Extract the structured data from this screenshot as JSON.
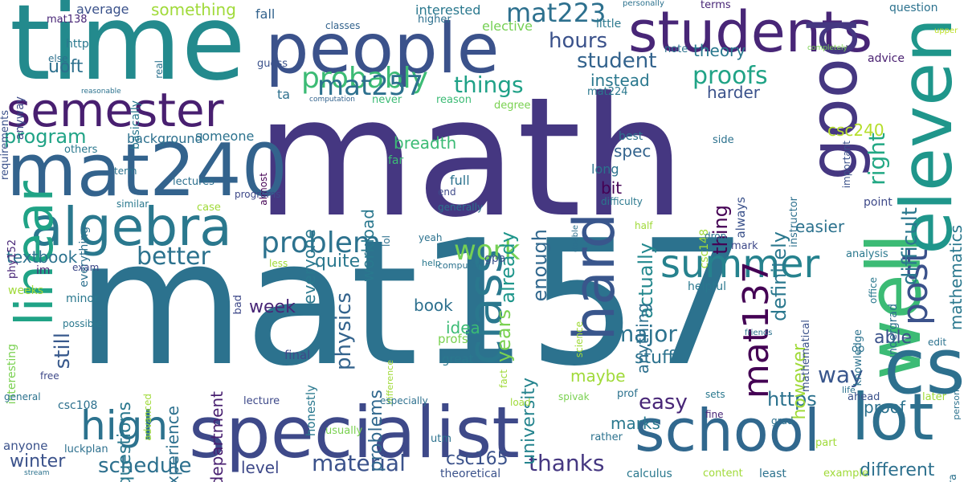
{
  "words": [
    {
      "text": "math",
      "color": "#453781"
    },
    {
      "text": "mat157",
      "color": "#2c728e"
    },
    {
      "text": "time",
      "color": "#238a8d"
    },
    {
      "text": "people",
      "color": "#3b528b"
    },
    {
      "text": "students",
      "color": "#482677"
    },
    {
      "text": "mat240",
      "color": "#33638d"
    },
    {
      "text": "semester",
      "color": "#481f70"
    },
    {
      "text": "specialist",
      "color": "#3e4989"
    },
    {
      "text": "algebra",
      "color": "#2a788e"
    },
    {
      "text": "linear",
      "color": "#20a386"
    },
    {
      "text": "well",
      "color": "#3cbb75"
    },
    {
      "text": "good",
      "color": "#453781"
    },
    {
      "text": "eleven",
      "color": "#1f968b"
    },
    {
      "text": "cs",
      "color": "#2d708e"
    },
    {
      "text": "school",
      "color": "#31688e"
    },
    {
      "text": "lot",
      "color": "#2d708e"
    },
    {
      "text": "hard",
      "color": "#39568c"
    },
    {
      "text": "class",
      "color": "#2a788e"
    },
    {
      "text": "summer",
      "color": "#26828e"
    },
    {
      "text": "high",
      "color": "#2c728e"
    },
    {
      "text": "probably",
      "color": "#3cbb75"
    },
    {
      "text": "mat223",
      "color": "#2d708e"
    },
    {
      "text": "mat137",
      "color": "#440154"
    },
    {
      "text": "post",
      "color": "#3b528b"
    },
    {
      "text": "problem",
      "color": "#2c728e"
    },
    {
      "text": "work",
      "color": "#75d054"
    },
    {
      "text": "mat257",
      "color": "#2d708e"
    },
    {
      "text": "material",
      "color": "#3b528b"
    },
    {
      "text": "thanks",
      "color": "#453781"
    },
    {
      "text": "schedule",
      "color": "#2d708e"
    },
    {
      "text": "still",
      "color": "#38598c"
    },
    {
      "text": "program",
      "color": "#20a386"
    },
    {
      "text": "better",
      "color": "#2c728e"
    },
    {
      "text": "proofs",
      "color": "#20a386"
    },
    {
      "text": "hours",
      "color": "#3b528b"
    },
    {
      "text": "student",
      "color": "#33638d"
    },
    {
      "text": "things",
      "color": "#1fa187"
    },
    {
      "text": "uoft",
      "color": "#2d708e"
    },
    {
      "text": "physics",
      "color": "#33638d"
    },
    {
      "text": "major",
      "color": "#2c728e"
    },
    {
      "text": "easy",
      "color": "#482677"
    },
    {
      "text": "way",
      "color": "#39568c"
    },
    {
      "text": "https",
      "color": "#2c728e"
    },
    {
      "text": "right",
      "color": "#22a884"
    },
    {
      "text": "difficult",
      "color": "#2a788e"
    },
    {
      "text": "definitely",
      "color": "#2a788e"
    },
    {
      "text": "enough",
      "color": "#31688e"
    },
    {
      "text": "thing",
      "color": "#440154"
    },
    {
      "text": "already",
      "color": "#1f968b"
    },
    {
      "text": "actually",
      "color": "#23888e"
    },
    {
      "text": "years",
      "color": "#7ad151"
    },
    {
      "text": "university",
      "color": "#25848e"
    },
    {
      "text": "problems",
      "color": "#31688e"
    },
    {
      "text": "questions",
      "color": "#2a788e"
    },
    {
      "text": "experience",
      "color": "#2d708e"
    },
    {
      "text": "department",
      "color": "#481f70"
    },
    {
      "text": "csc165",
      "color": "#3b528b"
    },
    {
      "text": "different",
      "color": "#2d708e"
    },
    {
      "text": "winter",
      "color": "#3b528b"
    },
    {
      "text": "level",
      "color": "#3e4989"
    },
    {
      "text": "textbook",
      "color": "#2c728e"
    },
    {
      "text": "quite",
      "color": "#2a788e"
    },
    {
      "text": "week",
      "color": "#482677"
    },
    {
      "text": "book",
      "color": "#2d708e"
    },
    {
      "text": "idea",
      "color": "#3cbb75"
    },
    {
      "text": "maybe",
      "color": "#a0da39"
    },
    {
      "text": "stuff",
      "color": "#2c728e"
    },
    {
      "text": "able",
      "color": "#3b528b"
    },
    {
      "text": "proof",
      "color": "#2c728e"
    },
    {
      "text": "marks",
      "color": "#2a788e"
    },
    {
      "text": "however",
      "color": "#a0da39"
    },
    {
      "text": "anything",
      "color": "#2d708e"
    },
    {
      "text": "bit",
      "color": "#440154"
    },
    {
      "text": "spec",
      "color": "#33638d"
    },
    {
      "text": "long",
      "color": "#2c728e"
    },
    {
      "text": "instead",
      "color": "#2a788e"
    },
    {
      "text": "theory",
      "color": "#2a788e"
    },
    {
      "text": "harder",
      "color": "#3b528b"
    },
    {
      "text": "easier",
      "color": "#2c728e"
    },
    {
      "text": "mathematics",
      "color": "#2a788e"
    },
    {
      "text": "csc240",
      "color": "#b5de2b"
    },
    {
      "text": "breadth",
      "color": "#3cbb75"
    },
    {
      "text": "everyone",
      "color": "#2a788e"
    },
    {
      "text": "workload",
      "color": "#2a788e"
    },
    {
      "text": "background",
      "color": "#2d708e"
    },
    {
      "text": "someone",
      "color": "#2c728e"
    },
    {
      "text": "something",
      "color": "#a0da39"
    },
    {
      "text": "average",
      "color": "#3b528b"
    },
    {
      "text": "mat138",
      "color": "#482677"
    },
    {
      "text": "fall",
      "color": "#33638d"
    },
    {
      "text": "interested",
      "color": "#2a788e"
    },
    {
      "text": "elective",
      "color": "#75d054"
    },
    {
      "text": "little",
      "color": "#2a788e"
    },
    {
      "text": "personally",
      "color": "#2c728e"
    },
    {
      "text": "terms",
      "color": "#482677"
    },
    {
      "text": "question",
      "color": "#2c728e"
    },
    {
      "text": "upper",
      "color": "#bddf26"
    },
    {
      "text": "higher",
      "color": "#2d708e"
    },
    {
      "text": "classes",
      "color": "#33638d"
    },
    {
      "text": "completely",
      "color": "#7ad151"
    },
    {
      "text": "advice",
      "color": "#481f70"
    },
    {
      "text": "note",
      "color": "#2c728e"
    },
    {
      "text": "requirements",
      "color": "#3b528b"
    },
    {
      "text": "anyway",
      "color": "#3e4989"
    },
    {
      "text": "http",
      "color": "#2a788e"
    },
    {
      "text": "else",
      "color": "#2d708e"
    },
    {
      "text": "basically",
      "color": "#2a788e"
    },
    {
      "text": "real",
      "color": "#2c728e"
    },
    {
      "text": "guess",
      "color": "#3b528b"
    },
    {
      "text": "reasonable",
      "color": "#2c728e"
    },
    {
      "text": "ta",
      "color": "#2d708e"
    },
    {
      "text": "computation",
      "color": "#33638d"
    },
    {
      "text": "never",
      "color": "#3cbb75"
    },
    {
      "text": "reason",
      "color": "#3cbb75"
    },
    {
      "text": "degree",
      "color": "#7ad151"
    },
    {
      "text": "mat224",
      "color": "#2a788e"
    },
    {
      "text": "important",
      "color": "#3b528b"
    },
    {
      "text": "best",
      "color": "#2d708e"
    },
    {
      "text": "side",
      "color": "#2c728e"
    },
    {
      "text": "instructor",
      "color": "#2d708e"
    },
    {
      "text": "almost",
      "color": "#440154"
    },
    {
      "text": "others",
      "color": "#2a788e"
    },
    {
      "text": "term",
      "color": "#2c728e"
    },
    {
      "text": "everything",
      "color": "#2d708e"
    },
    {
      "text": "similar",
      "color": "#2a788e"
    },
    {
      "text": "lectures",
      "color": "#2d708e"
    },
    {
      "text": "case",
      "color": "#a0da39"
    },
    {
      "text": "phy152",
      "color": "#482677"
    },
    {
      "text": "programs",
      "color": "#3e4989"
    },
    {
      "text": "lol",
      "color": "#2d708e"
    },
    {
      "text": "far",
      "color": "#3cbb75"
    },
    {
      "text": "full",
      "color": "#2c728e"
    },
    {
      "text": "end",
      "color": "#3e4989"
    },
    {
      "text": "generally",
      "color": "#2c728e"
    },
    {
      "text": "doable",
      "color": "#2d708e"
    },
    {
      "text": "difficulty",
      "color": "#2a788e"
    },
    {
      "text": "csc148",
      "color": "#a0da39"
    },
    {
      "text": "always",
      "color": "#3b528b"
    },
    {
      "text": "point",
      "color": "#3e4989"
    },
    {
      "text": "half",
      "color": "#a0da39"
    },
    {
      "text": "drop",
      "color": "#2c728e"
    },
    {
      "text": "mark",
      "color": "#3e4989"
    },
    {
      "text": "analysis",
      "color": "#2a788e"
    },
    {
      "text": "office",
      "color": "#2a788e"
    },
    {
      "text": "yeah",
      "color": "#2c728e"
    },
    {
      "text": "gpa",
      "color": "#3b528b"
    },
    {
      "text": "help",
      "color": "#2a788e"
    },
    {
      "text": "computer",
      "color": "#2c728e"
    },
    {
      "text": "exam",
      "color": "#3e4989"
    },
    {
      "text": "im",
      "color": "#482677"
    },
    {
      "text": "weeks",
      "color": "#a0da39"
    },
    {
      "text": "less",
      "color": "#a0da39"
    },
    {
      "text": "bad",
      "color": "#3e4989"
    },
    {
      "text": "minor",
      "color": "#2a788e"
    },
    {
      "text": "possible",
      "color": "#2a788e"
    },
    {
      "text": "interesting",
      "color": "#7ad151"
    },
    {
      "text": "science",
      "color": "#a0da39"
    },
    {
      "text": "helpful",
      "color": "#2a788e"
    },
    {
      "text": "mathematical",
      "color": "#3b528b"
    },
    {
      "text": "knowledge",
      "color": "#2c728e"
    },
    {
      "text": "undergrad",
      "color": "#2d708e"
    },
    {
      "text": "friends",
      "color": "#2c728e"
    },
    {
      "text": "edit",
      "color": "#2c728e"
    },
    {
      "text": "op",
      "color": "#2c728e"
    },
    {
      "text": "person",
      "color": "#2c728e"
    },
    {
      "text": "advanced",
      "color": "#a0da39"
    },
    {
      "text": "final",
      "color": "#3e4989"
    },
    {
      "text": "profs",
      "color": "#7ad151"
    },
    {
      "text": "great",
      "color": "#2a788e"
    },
    {
      "text": "difference",
      "color": "#a0da39"
    },
    {
      "text": "free",
      "color": "#3e4989"
    },
    {
      "text": "general",
      "color": "#2c728e"
    },
    {
      "text": "csc108",
      "color": "#2d708e"
    },
    {
      "text": "lecture",
      "color": "#3e4989"
    },
    {
      "text": "honestly",
      "color": "#2a788e"
    },
    {
      "text": "especially",
      "color": "#2d708e"
    },
    {
      "text": "load",
      "color": "#a0da39"
    },
    {
      "text": "spivak",
      "color": "#7ad151"
    },
    {
      "text": "prof",
      "color": "#2c728e"
    },
    {
      "text": "sets",
      "color": "#2a788e"
    },
    {
      "text": "fine",
      "color": "#482677"
    },
    {
      "text": "life",
      "color": "#2c728e"
    },
    {
      "text": "ahead",
      "color": "#3b528b"
    },
    {
      "text": "later",
      "color": "#a0da39"
    },
    {
      "text": "fact",
      "color": "#a0da39"
    },
    {
      "text": "usually",
      "color": "#7ad151"
    },
    {
      "text": "utm",
      "color": "#2c728e"
    },
    {
      "text": "grad",
      "color": "#2d708e"
    },
    {
      "text": "rather",
      "color": "#2c728e"
    },
    {
      "text": "anyone",
      "color": "#3b528b"
    },
    {
      "text": "luckplan",
      "color": "#2d708e"
    },
    {
      "text": "part",
      "color": "#a0da39"
    },
    {
      "text": "extra",
      "color": "#2c728e"
    },
    {
      "text": "calculus",
      "color": "#2a788e"
    },
    {
      "text": "content",
      "color": "#a0da39"
    },
    {
      "text": "least",
      "color": "#2c728e"
    },
    {
      "text": "example",
      "color": "#a0da39"
    },
    {
      "text": "theoretical",
      "color": "#3b528b"
    },
    {
      "text": "stream",
      "color": "#2c728e"
    }
  ]
}
